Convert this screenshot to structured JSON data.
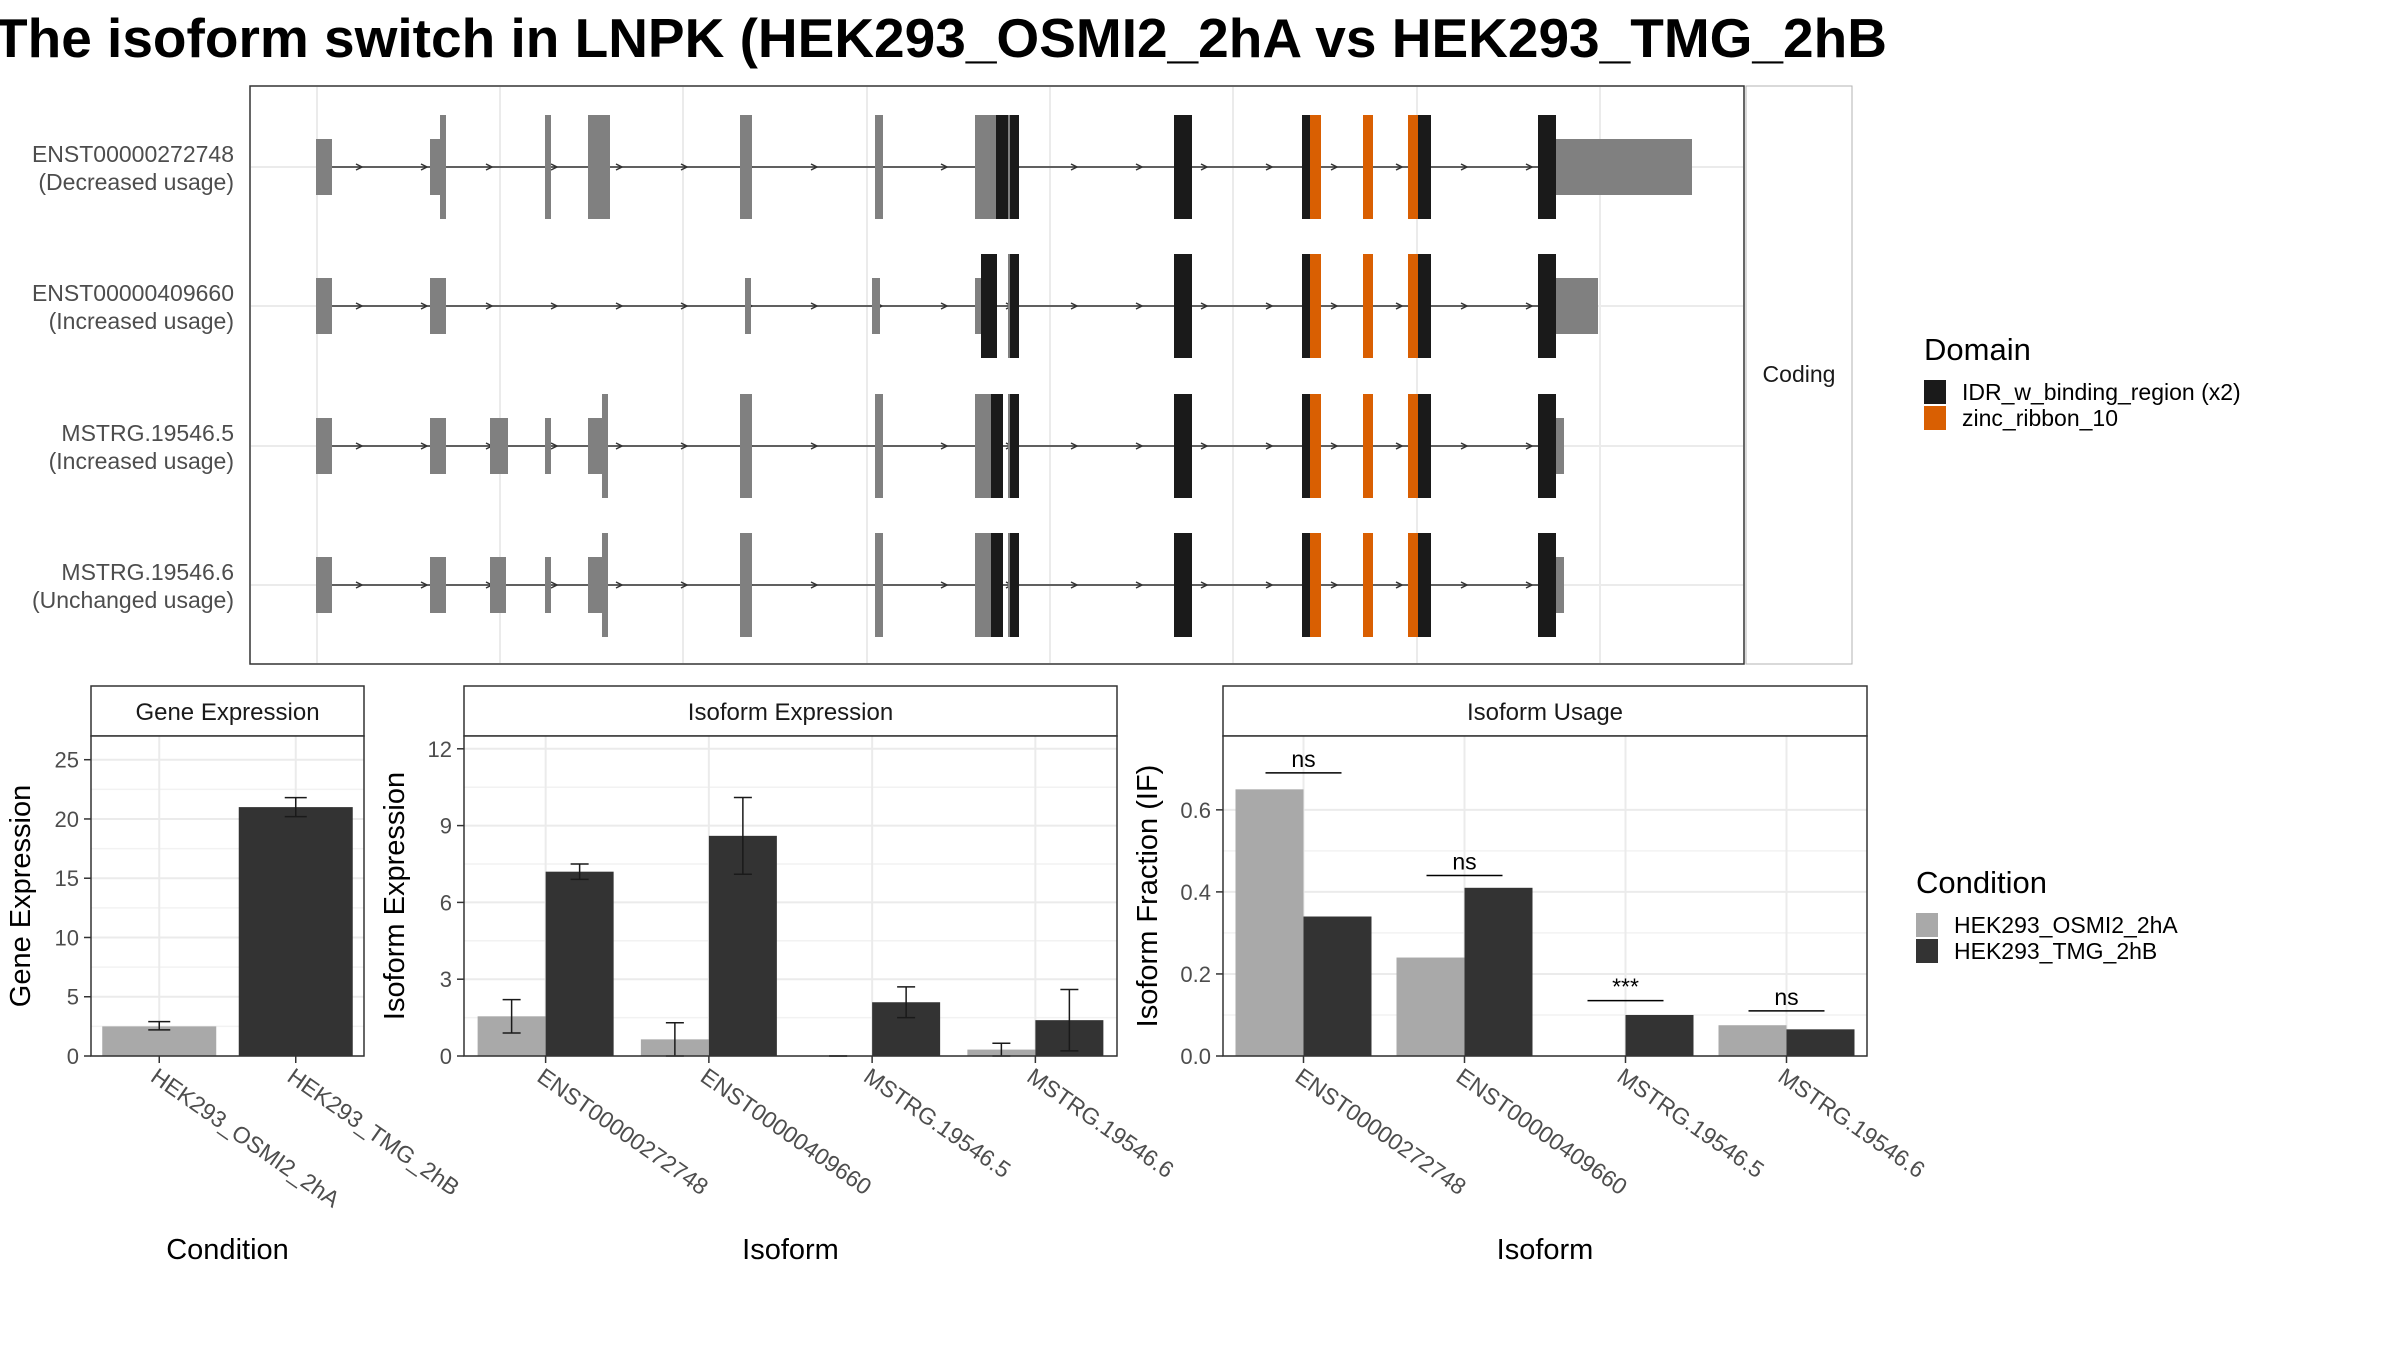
{
  "title": "The isoform switch in LNPK (HEK293_OSMI2_2hA vs HEK293_TMG_2hB",
  "colors": {
    "cond_a": "#a9a9a9",
    "cond_b": "#333333",
    "exon": "#808080",
    "idr": "#1a1a1a",
    "zinc": "#d95f02",
    "grid": "#ebebeb"
  },
  "structure": {
    "facet_label": "Coding",
    "transcripts": [
      {
        "id": "ENST00000272748",
        "usage": "(Decreased usage)"
      },
      {
        "id": "ENST00000409660",
        "usage": "(Increased usage)"
      },
      {
        "id": "MSTRG.19546.5",
        "usage": "(Increased usage)"
      },
      {
        "id": "MSTRG.19546.6",
        "usage": "(Unchanged usage)"
      }
    ]
  },
  "legends": {
    "domain": {
      "title": "Domain",
      "items": [
        {
          "label": "IDR_w_binding_region (x2)",
          "color": "#1a1a1a"
        },
        {
          "label": "zinc_ribbon_10",
          "color": "#d95f02"
        }
      ]
    },
    "condition": {
      "title": "Condition",
      "items": [
        {
          "label": "HEK293_OSMI2_2hA",
          "color": "#a9a9a9"
        },
        {
          "label": "HEK293_TMG_2hB",
          "color": "#333333"
        }
      ]
    }
  },
  "chart_data": [
    {
      "type": "bar",
      "strip": "Gene Expression",
      "xlabel": "Condition",
      "ylabel": "Gene Expression",
      "ylim": [
        0,
        27
      ],
      "yticks": [
        0,
        5,
        10,
        15,
        20,
        25
      ],
      "categories": [
        "HEK293_OSMI2_2hA",
        "HEK293_TMG_2hB"
      ],
      "values": [
        2.5,
        21.0
      ],
      "errors": [
        [
          2.2,
          2.9
        ],
        [
          20.2,
          21.8
        ]
      ]
    },
    {
      "type": "bar",
      "strip": "Isoform Expression",
      "xlabel": "Isoform",
      "ylabel": "Isoform Expression",
      "ylim": [
        0,
        12.5
      ],
      "yticks": [
        0,
        3,
        6,
        9,
        12
      ],
      "categories": [
        "ENST00000272748",
        "ENST00000409660",
        "MSTRG.19546.5",
        "MSTRG.19546.6"
      ],
      "series": [
        {
          "name": "HEK293_OSMI2_2hA",
          "values": [
            1.55,
            0.65,
            0.0,
            0.25
          ],
          "errors": [
            [
              0.9,
              2.2
            ],
            [
              0.0,
              1.3
            ],
            [
              0.0,
              0.0
            ],
            [
              0.0,
              0.5
            ]
          ]
        },
        {
          "name": "HEK293_TMG_2hB",
          "values": [
            7.2,
            8.6,
            2.1,
            1.4
          ],
          "errors": [
            [
              6.9,
              7.5
            ],
            [
              7.1,
              10.1
            ],
            [
              1.5,
              2.7
            ],
            [
              0.2,
              2.6
            ]
          ]
        }
      ]
    },
    {
      "type": "bar",
      "strip": "Isoform Usage",
      "xlabel": "Isoform",
      "ylabel": "Isoform Fraction (IF)",
      "ylim": [
        0,
        0.78
      ],
      "yticks": [
        0.0,
        0.2,
        0.4,
        0.6
      ],
      "yticklabels": [
        "0.0",
        "0.2",
        "0.4",
        "0.6"
      ],
      "categories": [
        "ENST00000272748",
        "ENST00000409660",
        "MSTRG.19546.5",
        "MSTRG.19546.6"
      ],
      "series": [
        {
          "name": "HEK293_OSMI2_2hA",
          "values": [
            0.65,
            0.24,
            0.0,
            0.075
          ]
        },
        {
          "name": "HEK293_TMG_2hB",
          "values": [
            0.34,
            0.41,
            0.1,
            0.065
          ]
        }
      ],
      "annotations": [
        "ns",
        "ns",
        "***",
        "ns"
      ],
      "annotation_levels": [
        0.69,
        0.44,
        0.135,
        0.11
      ]
    }
  ]
}
